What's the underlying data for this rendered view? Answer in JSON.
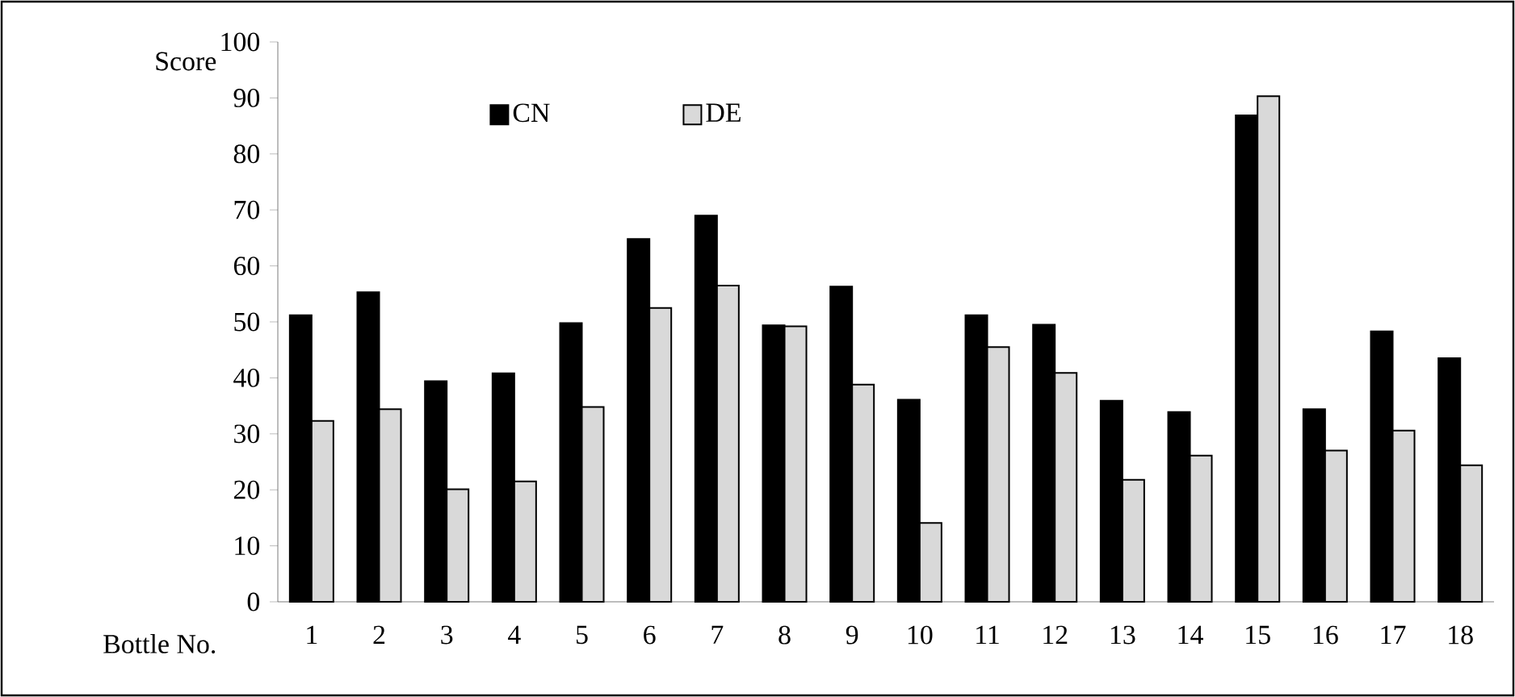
{
  "chart_data": {
    "type": "bar",
    "xlabel": "Bottle No.",
    "ylabel": "Score",
    "categories": [
      "1",
      "2",
      "3",
      "4",
      "5",
      "6",
      "7",
      "8",
      "9",
      "10",
      "11",
      "12",
      "13",
      "14",
      "15",
      "16",
      "17",
      "18"
    ],
    "series": [
      {
        "name": "CN",
        "color": "#000000",
        "values": [
          51.2,
          55.3,
          39.4,
          40.8,
          49.8,
          64.8,
          69.0,
          49.4,
          56.3,
          36.1,
          51.2,
          49.5,
          35.9,
          33.9,
          86.9,
          34.4,
          48.3,
          43.5
        ]
      },
      {
        "name": "DE",
        "color": "#d9d9d9",
        "values": [
          32.3,
          34.4,
          20.1,
          21.5,
          34.8,
          52.5,
          56.5,
          49.2,
          38.8,
          14.1,
          45.5,
          40.9,
          21.8,
          26.1,
          90.3,
          27.0,
          30.6,
          24.4
        ]
      }
    ],
    "ylim": [
      0,
      100
    ],
    "yticks": [
      0,
      10,
      20,
      30,
      40,
      50,
      60,
      70,
      80,
      90,
      100
    ],
    "grid": false,
    "legend": "top"
  }
}
